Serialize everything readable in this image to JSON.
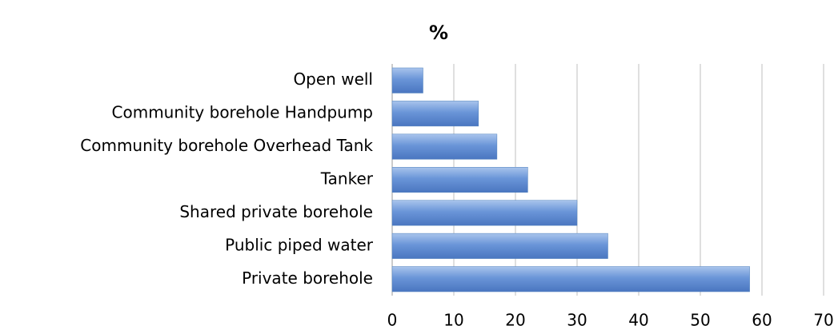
{
  "chart_data": {
    "type": "barh",
    "title": "%",
    "categories": [
      "Open well",
      "Community borehole Handpump",
      "Community borehole Overhead Tank",
      "Tanker",
      "Shared private borehole",
      "Public piped water",
      "Private borehole"
    ],
    "values": [
      5,
      14,
      17,
      22,
      30,
      35,
      58
    ],
    "color": "#4f81bd",
    "xlim": [
      0,
      70
    ],
    "xticks": [
      0,
      10,
      20,
      30,
      40,
      50,
      60,
      70
    ],
    "grid": true
  }
}
